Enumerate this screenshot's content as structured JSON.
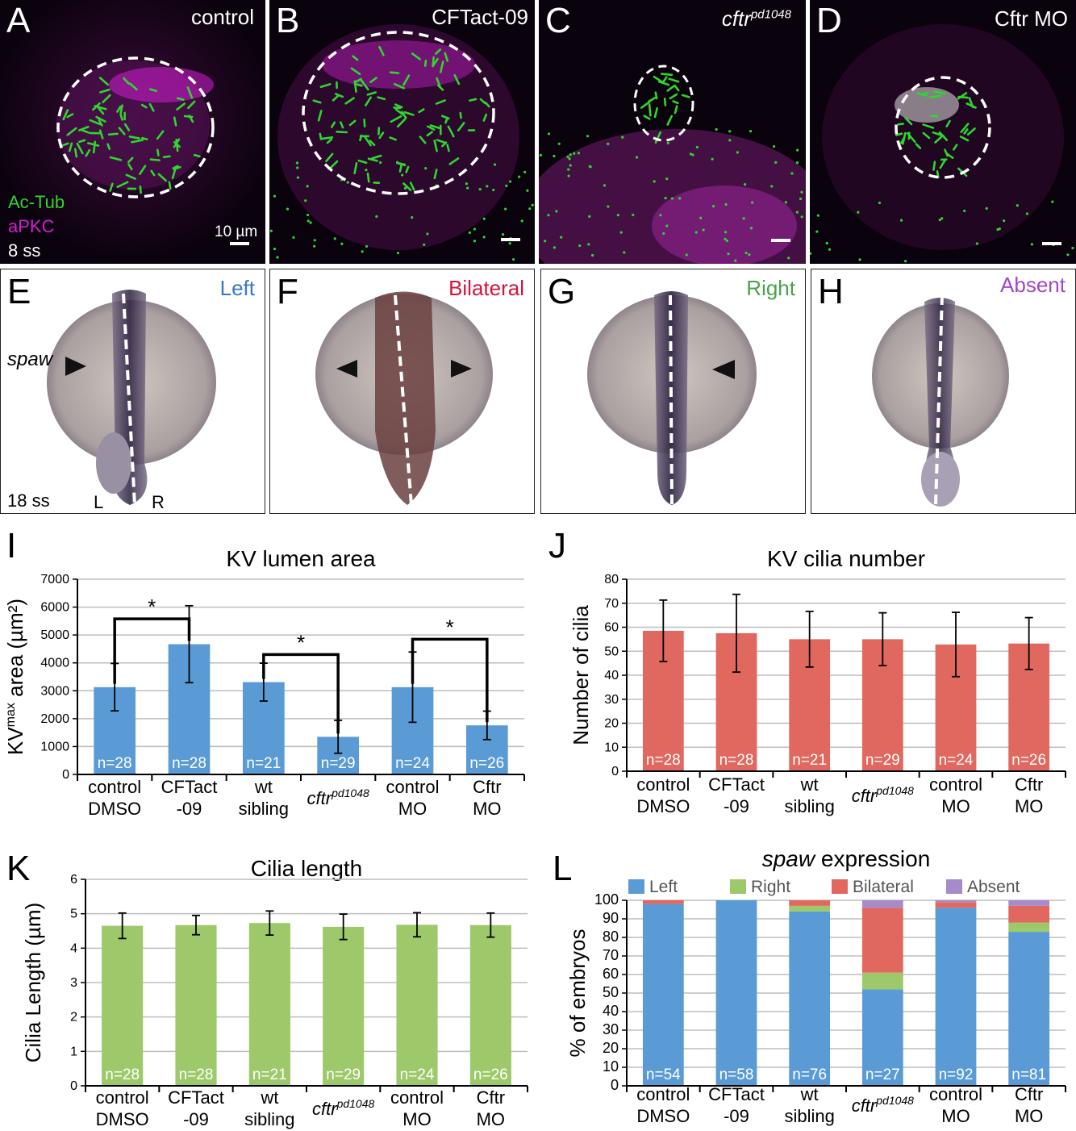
{
  "micro_panels": [
    {
      "label": "A",
      "title": "control",
      "title_sup": "",
      "title_italic": false
    },
    {
      "label": "B",
      "title": "CFTact-09",
      "title_sup": "",
      "title_italic": false
    },
    {
      "label": "C",
      "title": "cftr",
      "title_sup": "pd1048",
      "title_italic": true
    },
    {
      "label": "D",
      "title": "Cftr MO",
      "title_sup": "",
      "title_italic": false
    }
  ],
  "micro_legend": {
    "actub": "Ac-Tub",
    "apkc": "aPKC",
    "stage": "8 ss",
    "scale": "10 µm"
  },
  "micro_colors": {
    "actub": "#2ed62e",
    "apkc": "#d21fd2",
    "background": "#050108"
  },
  "embryo_panels": [
    {
      "label": "E",
      "title": "Left",
      "color": "#3a78c0"
    },
    {
      "label": "F",
      "title": "Bilateral",
      "color": "#d2143c"
    },
    {
      "label": "G",
      "title": "Right",
      "color": "#4aa24a"
    },
    {
      "label": "H",
      "title": "Absent",
      "color": "#a445c8"
    }
  ],
  "embryo_text": {
    "gene": "spaw",
    "stage": "18 ss",
    "left": "L",
    "right": "R"
  },
  "chart_labels": {
    "I": "I",
    "J": "J",
    "K": "K",
    "L": "L"
  },
  "chart_data": [
    {
      "type": "bar",
      "title": "KV lumen area",
      "ylabel": "KV",
      "ylabel_sup": "max",
      "ylabel_rest": " area (µm²)",
      "ylim": [
        0,
        7000
      ],
      "yticks": [
        0,
        1000,
        2000,
        3000,
        4000,
        5000,
        6000,
        7000
      ],
      "grid": true,
      "categories": [
        [
          "control",
          "DMSO"
        ],
        [
          "CFTact",
          "-09"
        ],
        [
          "wt",
          "sibling"
        ],
        [
          "cftr",
          "pd1048"
        ],
        [
          "control",
          "MO"
        ],
        [
          "Cftr",
          "MO"
        ]
      ],
      "values": [
        3130,
        4670,
        3310,
        1350,
        3130,
        1760
      ],
      "errors": [
        850,
        1380,
        680,
        590,
        1260,
        510
      ],
      "n_labels": [
        "n=28",
        "n=28",
        "n=21",
        "n=29",
        "n=24",
        "n=26"
      ],
      "significance": [
        {
          "from": 0,
          "to": 1,
          "label": "*"
        },
        {
          "from": 2,
          "to": 3,
          "label": "*"
        },
        {
          "from": 4,
          "to": 5,
          "label": "*"
        }
      ],
      "color": "#5b9bd5"
    },
    {
      "type": "bar",
      "title": "KV cilia number",
      "ylabel": "Number of cilia",
      "ylim": [
        0,
        80
      ],
      "yticks": [
        0,
        10,
        20,
        30,
        40,
        50,
        60,
        70,
        80
      ],
      "grid": true,
      "categories": [
        [
          "control",
          "DMSO"
        ],
        [
          "CFTact",
          "-09"
        ],
        [
          "wt",
          "sibling"
        ],
        [
          "cftr",
          "pd1048"
        ],
        [
          "control",
          "MO"
        ],
        [
          "Cftr",
          "MO"
        ]
      ],
      "values": [
        58.5,
        57.5,
        55,
        55,
        52.8,
        53.2
      ],
      "errors": [
        12.8,
        16.2,
        11.6,
        11,
        13.4,
        10.8
      ],
      "n_labels": [
        "n=28",
        "n=28",
        "n=21",
        "n=29",
        "n=24",
        "n=26"
      ],
      "color": "#e0685f"
    },
    {
      "type": "bar",
      "title": "Cilia length",
      "ylabel": "Cilia Length (µm)",
      "ylim": [
        0,
        6
      ],
      "yticks": [
        0,
        1,
        2,
        3,
        4,
        5,
        6
      ],
      "grid": true,
      "categories": [
        [
          "control",
          "DMSO"
        ],
        [
          "CFTact",
          "-09"
        ],
        [
          "wt",
          "sibling"
        ],
        [
          "cftr",
          "pd1048"
        ],
        [
          "control",
          "MO"
        ],
        [
          "Cftr",
          "MO"
        ]
      ],
      "values": [
        4.65,
        4.67,
        4.73,
        4.62,
        4.68,
        4.67
      ],
      "errors": [
        0.37,
        0.28,
        0.35,
        0.37,
        0.35,
        0.35
      ],
      "n_labels": [
        "n=28",
        "n=28",
        "n=21",
        "n=29",
        "n=24",
        "n=26"
      ],
      "color": "#9dc96b"
    },
    {
      "type": "stacked-bar",
      "title": "spaw",
      "title_rest": " expression",
      "ylabel": "% of embryos",
      "ylim": [
        0,
        100
      ],
      "yticks": [
        0,
        10,
        20,
        30,
        40,
        50,
        60,
        70,
        80,
        90,
        100
      ],
      "grid": true,
      "legend_position": "top",
      "categories": [
        [
          "control",
          "DMSO"
        ],
        [
          "CFTact",
          "-09"
        ],
        [
          "wt",
          "sibling"
        ],
        [
          "cftr",
          "pd1048"
        ],
        [
          "control",
          "MO"
        ],
        [
          "Cftr",
          "MO"
        ]
      ],
      "series": [
        {
          "name": "Left",
          "color": "#5b9bd5",
          "values": [
            98,
            100,
            94,
            52,
            96,
            83
          ]
        },
        {
          "name": "Right",
          "color": "#9dc96b",
          "values": [
            0,
            0,
            3,
            9,
            0,
            5
          ]
        },
        {
          "name": "Bilateral",
          "color": "#e0685f",
          "values": [
            2,
            0,
            3,
            35,
            3,
            9
          ]
        },
        {
          "name": "Absent",
          "color": "#a78bc8",
          "values": [
            0,
            0,
            0,
            4,
            1,
            3
          ]
        }
      ],
      "n_labels": [
        "n=54",
        "n=58",
        "n=76",
        "n=27",
        "n=92",
        "n=81"
      ]
    }
  ]
}
